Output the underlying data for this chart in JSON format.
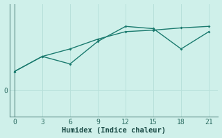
{
  "xlabel": "Humidex (Indice chaleur)",
  "background_color": "#cff0ea",
  "line_color": "#1a7a6e",
  "grid_color": "#b8e0da",
  "x_ticks": [
    0,
    3,
    6,
    9,
    12,
    15,
    18,
    21
  ],
  "x_min": -0.5,
  "x_max": 22,
  "line1_x": [
    0,
    3,
    6,
    9,
    12,
    15,
    18,
    21
  ],
  "line1_y": [
    2.5,
    4.5,
    3.5,
    6.5,
    8.5,
    8.2,
    5.5,
    7.8
  ],
  "line2_x": [
    0,
    3,
    6,
    9,
    12,
    15,
    18,
    21
  ],
  "line2_y": [
    2.5,
    4.5,
    5.5,
    6.8,
    7.8,
    8.0,
    8.3,
    8.5
  ],
  "y_min": -3.5,
  "y_max": 11.5,
  "y_zero_label": "0",
  "zero_y": 0
}
